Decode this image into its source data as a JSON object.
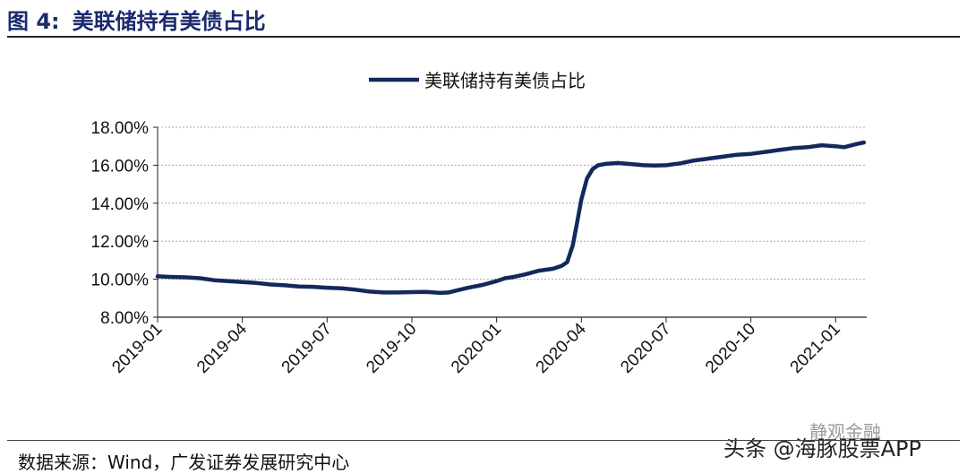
{
  "header": {
    "figure_label": "图 4:",
    "title": "美联储持有美债占比"
  },
  "footer": {
    "source": "数据来源：Wind，广发证券发展研究中心"
  },
  "watermarks": {
    "top": "静观金融",
    "bottom": "头条 @海豚股票APP"
  },
  "chart_data": {
    "type": "line",
    "title": "",
    "xlabel": "",
    "ylabel": "",
    "ylim": [
      8,
      18
    ],
    "y_ticks": [
      "8.00%",
      "10.00%",
      "12.00%",
      "14.00%",
      "16.00%",
      "18.00%"
    ],
    "x_ticks": [
      "2019-01",
      "2019-04",
      "2019-07",
      "2019-10",
      "2020-01",
      "2020-04",
      "2020-07",
      "2020-10",
      "2021-01"
    ],
    "grid": true,
    "legend_position": "top-center",
    "series": [
      {
        "name": "美联储持有美债占比",
        "color": "#14285c",
        "points": [
          [
            0,
            10.15
          ],
          [
            0.5,
            10.12
          ],
          [
            1,
            10.1
          ],
          [
            1.5,
            10.05
          ],
          [
            2,
            9.95
          ],
          [
            2.5,
            9.9
          ],
          [
            3,
            9.85
          ],
          [
            3.5,
            9.8
          ],
          [
            4,
            9.72
          ],
          [
            4.5,
            9.68
          ],
          [
            5,
            9.62
          ],
          [
            5.5,
            9.6
          ],
          [
            6,
            9.55
          ],
          [
            6.5,
            9.52
          ],
          [
            7,
            9.45
          ],
          [
            7.5,
            9.35
          ],
          [
            8,
            9.3
          ],
          [
            8.5,
            9.3
          ],
          [
            9,
            9.32
          ],
          [
            9.5,
            9.33
          ],
          [
            10,
            9.28
          ],
          [
            10.3,
            9.3
          ],
          [
            10.7,
            9.45
          ],
          [
            11,
            9.55
          ],
          [
            11.5,
            9.7
          ],
          [
            12,
            9.9
          ],
          [
            12.3,
            10.05
          ],
          [
            12.6,
            10.12
          ],
          [
            13,
            10.25
          ],
          [
            13.5,
            10.45
          ],
          [
            14,
            10.55
          ],
          [
            14.3,
            10.7
          ],
          [
            14.5,
            10.9
          ],
          [
            14.7,
            11.8
          ],
          [
            14.85,
            13.0
          ],
          [
            15,
            14.2
          ],
          [
            15.2,
            15.3
          ],
          [
            15.4,
            15.8
          ],
          [
            15.6,
            16.0
          ],
          [
            15.9,
            16.08
          ],
          [
            16.3,
            16.12
          ],
          [
            16.8,
            16.05
          ],
          [
            17.2,
            16.0
          ],
          [
            17.6,
            15.98
          ],
          [
            18,
            16.0
          ],
          [
            18.5,
            16.1
          ],
          [
            19,
            16.25
          ],
          [
            19.5,
            16.35
          ],
          [
            20,
            16.45
          ],
          [
            20.5,
            16.55
          ],
          [
            21,
            16.6
          ],
          [
            21.5,
            16.7
          ],
          [
            22,
            16.8
          ],
          [
            22.5,
            16.9
          ],
          [
            23,
            16.95
          ],
          [
            23.5,
            17.05
          ],
          [
            24,
            17.0
          ],
          [
            24.3,
            16.95
          ],
          [
            24.7,
            17.1
          ],
          [
            25,
            17.2
          ]
        ]
      }
    ]
  }
}
